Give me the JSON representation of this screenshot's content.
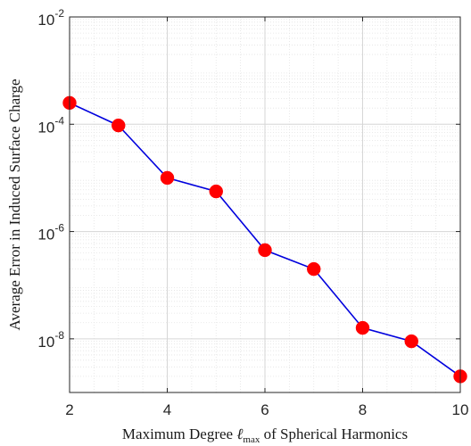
{
  "chart_data": {
    "type": "line",
    "title": "",
    "xlabel": {
      "before": "Maximum Degree ",
      "symbol": "ℓ",
      "subscript": "max",
      "after": " of Spherical Harmonics"
    },
    "ylabel": "Average Error in Induced Surface Charge",
    "x_scale": "linear",
    "y_scale": "log",
    "xlim": [
      2,
      10
    ],
    "ylim": [
      1e-09,
      0.01
    ],
    "x_ticks": [
      2,
      4,
      6,
      8,
      10
    ],
    "y_ticks": [
      {
        "value": 1e-08,
        "base": "10",
        "exponent": "-8"
      },
      {
        "value": 1e-06,
        "base": "10",
        "exponent": "-6"
      },
      {
        "value": 0.0001,
        "base": "10",
        "exponent": "-4"
      },
      {
        "value": 0.01,
        "base": "10",
        "exponent": "-2"
      }
    ],
    "grid": true,
    "minor_grid": true,
    "series": [
      {
        "line_color": "#0000dd",
        "marker_color": "#ff0000",
        "marker": "circle",
        "x": [
          2,
          3,
          4,
          5,
          6,
          7,
          8,
          9,
          10
        ],
        "y": [
          0.00025,
          9.5e-05,
          1e-05,
          5.6e-06,
          4.5e-07,
          2e-07,
          1.6e-08,
          9e-09,
          2e-09
        ]
      }
    ]
  }
}
